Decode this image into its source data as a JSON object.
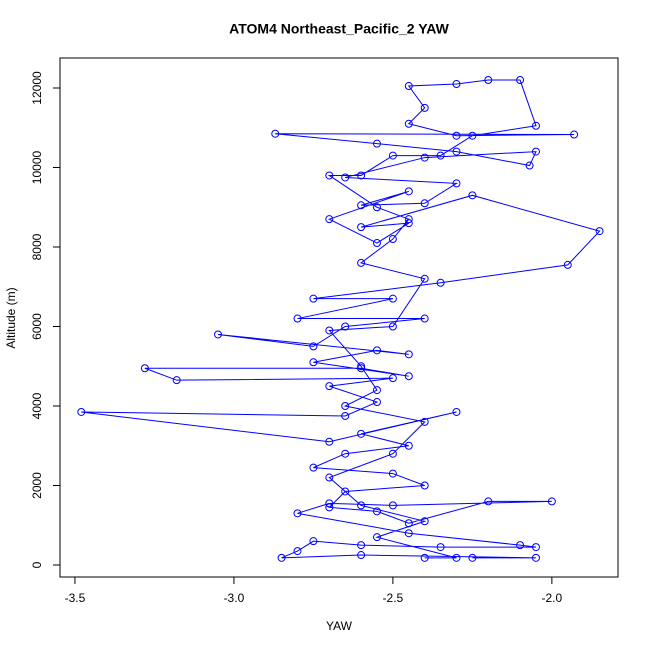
{
  "chart_data": {
    "type": "line",
    "title": "ATOM4 Northeast_Pacific_2 YAW",
    "x_label": "YAW",
    "y_label": "Altitude (m)",
    "x": [
      -2.25,
      -2.05,
      -2.6,
      -2.85,
      -2.8,
      -2.75,
      -2.6,
      -2.35,
      -2.05,
      -2.1,
      -2.45,
      -2.8,
      -2.7,
      -2.5,
      -2.0,
      -2.2,
      -2.45,
      -2.55,
      -2.7,
      -2.65,
      -2.4,
      -2.5,
      -2.75,
      -2.65,
      -2.45,
      -2.6,
      -2.3,
      -2.7,
      -3.48,
      -2.65,
      -2.55,
      -2.7,
      -2.5,
      -3.18,
      -3.28,
      -2.6,
      -2.45,
      -2.75,
      -2.55,
      -2.45,
      -3.05,
      -2.75,
      -2.65,
      -2.4,
      -2.8,
      -2.5,
      -2.75,
      -2.35,
      -1.95,
      -1.85,
      -2.25,
      -2.6,
      -2.45,
      -2.55,
      -2.7,
      -2.45,
      -2.6,
      -2.4,
      -2.3,
      -2.65,
      -2.4,
      -2.05,
      -2.07,
      -2.3,
      -2.55,
      -2.87,
      -1.93,
      -2.3,
      -2.45,
      -2.4,
      -2.45,
      -2.3,
      -2.2,
      -2.1,
      -2.05,
      -2.25,
      -2.35,
      -2.5,
      -2.6,
      -2.7,
      -2.55,
      -2.45,
      -2.5,
      -2.6,
      -2.4,
      -2.5,
      -2.7,
      -2.6,
      -2.55,
      -2.65,
      -2.4,
      -2.5,
      -2.7,
      -2.6,
      -2.4,
      -2.55,
      -2.3,
      -2.4
    ],
    "series": [
      {
        "name": "Altitude",
        "color": "#0000ff",
        "values": [
          180,
          180,
          250,
          180,
          350,
          600,
          500,
          450,
          450,
          500,
          800,
          1300,
          1550,
          1500,
          1600,
          1600,
          1050,
          1350,
          1450,
          1850,
          2000,
          2300,
          2450,
          2800,
          3000,
          3300,
          3850,
          3100,
          3850,
          3750,
          4100,
          4500,
          4700,
          4650,
          4950,
          4950,
          4750,
          5100,
          5400,
          5300,
          5800,
          5500,
          6000,
          6200,
          6200,
          6700,
          6700,
          7100,
          7550,
          8400,
          9300,
          8500,
          8600,
          8100,
          8700,
          9400,
          9050,
          9100,
          9600,
          9750,
          10250,
          10400,
          10050,
          10400,
          10600,
          10850,
          10830,
          10800,
          11100,
          11500,
          12050,
          12100,
          12200,
          12200,
          11050,
          10800,
          10300,
          10300,
          9800,
          9800,
          9000,
          8700,
          8200,
          7600,
          7200,
          6000,
          5900,
          5000,
          4400,
          4000,
          3600,
          2800,
          2200,
          1500,
          1100,
          700,
          180,
          180
        ]
      }
    ],
    "xlim": [
      -3.547,
      -1.792
    ],
    "xticks": [
      {
        "value": -3.5,
        "label": "-3.5"
      },
      {
        "value": -3.0,
        "label": "-3.0"
      },
      {
        "value": -2.5,
        "label": "-2.5"
      },
      {
        "value": -2.0,
        "label": "-2.0"
      }
    ],
    "ylim": [
      -302,
      12755
    ],
    "yticks": [
      0,
      2000,
      4000,
      6000,
      8000,
      10000,
      12000
    ]
  }
}
